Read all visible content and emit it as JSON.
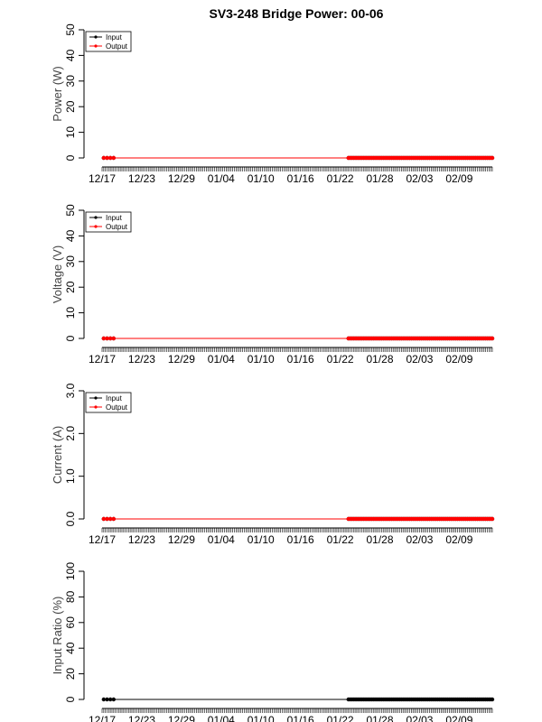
{
  "title": "SV3-248 Bridge Power: 00-06",
  "colors": {
    "input": "#000000",
    "output": "#ff0000",
    "axis": "#000000"
  },
  "date_ticks": [
    "12/17",
    "12/23",
    "12/29",
    "01/04",
    "01/10",
    "01/16",
    "01/22",
    "01/28",
    "02/03",
    "02/09"
  ],
  "chart_data": [
    {
      "type": "line",
      "ylabel": "Power (W)",
      "ylim": [
        0,
        50
      ],
      "yticks": [
        "0",
        "10",
        "20",
        "30",
        "40",
        "50"
      ],
      "legend": {
        "placement": "top-left",
        "entries": [
          "Input",
          "Output"
        ]
      },
      "x_range": [
        "12/17",
        "02/14"
      ],
      "series": [
        {
          "name": "Input",
          "clusters": [
            [
              "12/17",
              "12/19"
            ],
            [
              "01/23",
              "02/14"
            ]
          ],
          "value": 0
        },
        {
          "name": "Output",
          "clusters": [
            [
              "12/17",
              "12/19"
            ],
            [
              "01/23",
              "02/14"
            ]
          ],
          "value": 0
        }
      ]
    },
    {
      "type": "line",
      "ylabel": "Voltage (V)",
      "ylim": [
        0,
        50
      ],
      "yticks": [
        "0",
        "10",
        "20",
        "30",
        "40",
        "50"
      ],
      "legend": {
        "placement": "top-left",
        "entries": [
          "Input",
          "Output"
        ]
      },
      "x_range": [
        "12/17",
        "02/14"
      ],
      "series": [
        {
          "name": "Input",
          "clusters": [
            [
              "12/17",
              "12/19"
            ],
            [
              "01/23",
              "02/14"
            ]
          ],
          "value": 0
        },
        {
          "name": "Output",
          "clusters": [
            [
              "12/17",
              "12/19"
            ],
            [
              "01/23",
              "02/14"
            ]
          ],
          "value": 0
        }
      ]
    },
    {
      "type": "line",
      "ylabel": "Current (A)",
      "ylim": [
        0,
        3
      ],
      "yticks": [
        "0.0",
        "1.0",
        "2.0",
        "3.0"
      ],
      "legend": {
        "placement": "top-left",
        "entries": [
          "Input",
          "Output"
        ]
      },
      "x_range": [
        "12/17",
        "02/14"
      ],
      "series": [
        {
          "name": "Input",
          "clusters": [
            [
              "12/17",
              "12/19"
            ],
            [
              "01/23",
              "02/14"
            ]
          ],
          "value": 0
        },
        {
          "name": "Output",
          "clusters": [
            [
              "12/17",
              "12/19"
            ],
            [
              "01/23",
              "02/14"
            ]
          ],
          "value": 0
        }
      ]
    },
    {
      "type": "line",
      "ylabel": "Input Ratio (%)",
      "ylim": [
        0,
        100
      ],
      "yticks": [
        "0",
        "20",
        "40",
        "60",
        "80",
        "100"
      ],
      "legend": null,
      "x_range": [
        "12/17",
        "02/14"
      ],
      "series": [
        {
          "clusters": [
            [
              "12/17",
              "12/19"
            ],
            [
              "01/23",
              "02/14"
            ]
          ],
          "value": 0
        }
      ]
    }
  ]
}
